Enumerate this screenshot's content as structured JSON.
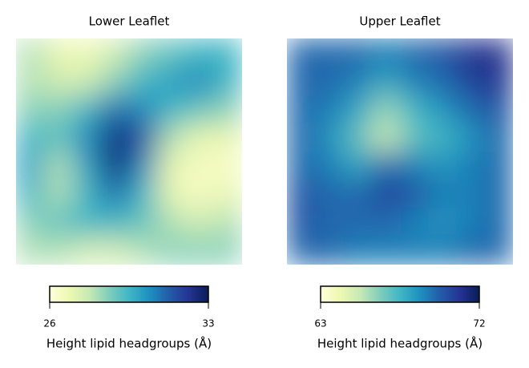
{
  "chart_data": [
    {
      "type": "heatmap",
      "title": "Lower Leaflet",
      "colorbar_label": "Height lipid headgroups (Å)",
      "clim": [
        26,
        33
      ],
      "cticks": [
        26,
        33
      ],
      "colormap": [
        "#ffffd9",
        "#edf8b1",
        "#c7e9b4",
        "#7fcdbb",
        "#41b6c4",
        "#1d91c0",
        "#225ea8",
        "#253494",
        "#081d58"
      ],
      "values": [
        [
          28,
          27,
          26.8,
          27.5,
          28.5,
          29,
          29.5,
          29.5
        ],
        [
          28,
          27.5,
          27.5,
          28.5,
          29.5,
          30,
          30.5,
          29.5
        ],
        [
          28.5,
          28.5,
          29.5,
          31,
          30.5,
          29.5,
          29,
          28.5
        ],
        [
          29.5,
          29,
          30.5,
          32.5,
          31.5,
          28,
          27,
          27
        ],
        [
          30,
          28,
          30,
          32.5,
          30.5,
          27,
          26.5,
          26.5
        ],
        [
          29.5,
          28,
          29.5,
          31,
          29.5,
          27,
          26.5,
          27
        ],
        [
          28.5,
          29,
          29.5,
          29.5,
          29,
          28,
          27.5,
          28
        ],
        [
          28,
          28,
          27.5,
          27.5,
          28,
          28.5,
          28.5,
          28.5
        ]
      ]
    },
    {
      "type": "heatmap",
      "title": "Upper Leaflet",
      "colorbar_label": "Height lipid headgroups (Å)",
      "clim": [
        63,
        72
      ],
      "cticks": [
        63,
        72
      ],
      "colormap": [
        "#ffffd9",
        "#edf8b1",
        "#c7e9b4",
        "#7fcdbb",
        "#41b6c4",
        "#1d91c0",
        "#225ea8",
        "#253494",
        "#081d58"
      ],
      "values": [
        [
          69.5,
          69.5,
          69.5,
          69,
          69.5,
          70,
          71,
          71
        ],
        [
          69.5,
          69.5,
          69,
          68,
          69,
          69.5,
          70.5,
          71
        ],
        [
          69.5,
          69,
          68,
          66,
          67.5,
          68.5,
          69.5,
          70
        ],
        [
          69.5,
          68.5,
          67,
          65,
          67,
          67.5,
          68.5,
          69.5
        ],
        [
          69.5,
          69,
          68,
          69.5,
          69,
          68.5,
          69,
          69.5
        ],
        [
          70,
          69.5,
          69.5,
          70.5,
          70,
          69,
          69,
          69.5
        ],
        [
          70,
          69.5,
          69.5,
          69.5,
          69,
          68.5,
          69,
          69.5
        ],
        [
          69.5,
          69.5,
          69,
          69,
          69,
          69,
          69.5,
          69.5
        ]
      ]
    }
  ]
}
